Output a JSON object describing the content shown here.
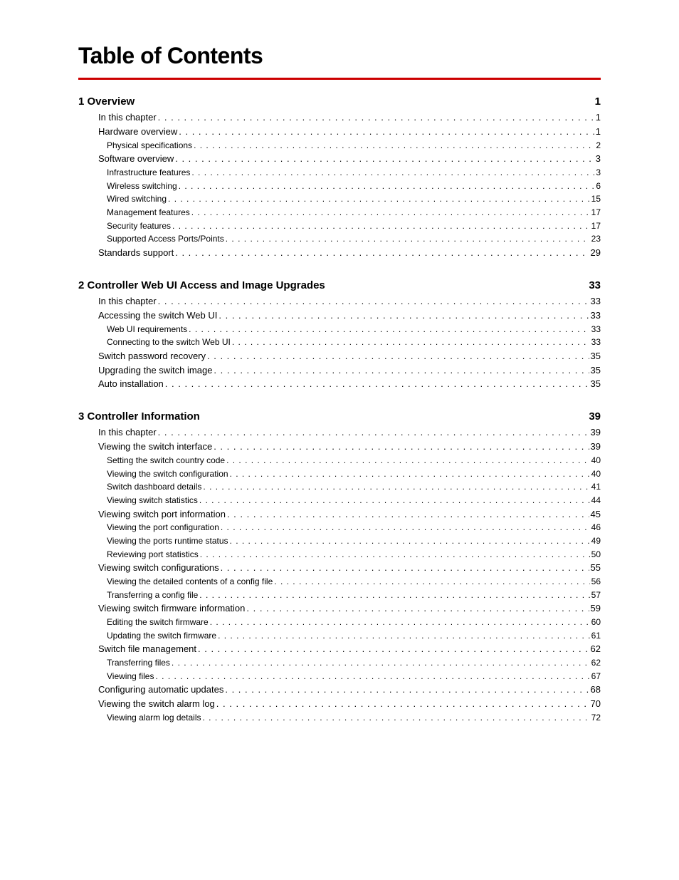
{
  "title": "Table of Contents",
  "colors": {
    "rule": "#cc0000",
    "text": "#000000",
    "background": "#ffffff"
  },
  "typography": {
    "title_fontsize": 32,
    "chapter_fontsize": 15,
    "level1_fontsize": 13,
    "level2_fontsize": 12,
    "font_family": "Arial"
  },
  "chapters": [
    {
      "id": "ch1",
      "number": "1",
      "title": "Overview",
      "page": "1",
      "entries": [
        {
          "level": 1,
          "label": "In this chapter",
          "page": "1"
        },
        {
          "level": 1,
          "label": "Hardware overview",
          "page": "1"
        },
        {
          "level": 2,
          "label": "Physical specifications",
          "page": "2"
        },
        {
          "level": 1,
          "label": "Software overview",
          "page": "3"
        },
        {
          "level": 2,
          "label": "Infrastructure features",
          "page": "3"
        },
        {
          "level": 2,
          "label": "Wireless switching",
          "page": "6"
        },
        {
          "level": 2,
          "label": "Wired switching",
          "page": "15"
        },
        {
          "level": 2,
          "label": "Management features",
          "page": "17"
        },
        {
          "level": 2,
          "label": "Security features",
          "page": "17"
        },
        {
          "level": 2,
          "label": "Supported Access Ports/Points",
          "page": "23"
        },
        {
          "level": 1,
          "label": "Standards support",
          "page": "29"
        }
      ]
    },
    {
      "id": "ch2",
      "number": "2",
      "title": "Controller Web UI Access and Image Upgrades",
      "page": "33",
      "entries": [
        {
          "level": 1,
          "label": "In this chapter",
          "page": "33"
        },
        {
          "level": 1,
          "label": "Accessing the switch Web UI",
          "page": "33"
        },
        {
          "level": 2,
          "label": "Web UI requirements",
          "page": "33"
        },
        {
          "level": 2,
          "label": "Connecting to the switch Web UI",
          "page": "33"
        },
        {
          "level": 1,
          "label": "Switch password recovery",
          "page": "35"
        },
        {
          "level": 1,
          "label": "Upgrading the switch image",
          "page": "35"
        },
        {
          "level": 1,
          "label": "Auto installation",
          "page": "35"
        }
      ]
    },
    {
      "id": "ch3",
      "number": "3",
      "title": "Controller Information",
      "page": "39",
      "entries": [
        {
          "level": 1,
          "label": "In this chapter",
          "page": "39"
        },
        {
          "level": 1,
          "label": "Viewing the switch interface",
          "page": "39"
        },
        {
          "level": 2,
          "label": "Setting the switch country code",
          "page": "40"
        },
        {
          "level": 2,
          "label": "Viewing the switch configuration",
          "page": "40"
        },
        {
          "level": 2,
          "label": "Switch dashboard details",
          "page": "41"
        },
        {
          "level": 2,
          "label": "Viewing switch statistics",
          "page": "44"
        },
        {
          "level": 1,
          "label": "Viewing switch port information",
          "page": "45"
        },
        {
          "level": 2,
          "label": "Viewing the port configuration",
          "page": "46"
        },
        {
          "level": 2,
          "label": "Viewing the ports runtime status",
          "page": "49"
        },
        {
          "level": 2,
          "label": "Reviewing port statistics",
          "page": "50"
        },
        {
          "level": 1,
          "label": "Viewing switch configurations",
          "page": "55"
        },
        {
          "level": 2,
          "label": "Viewing the detailed contents of a config file",
          "page": "56"
        },
        {
          "level": 2,
          "label": "Transferring a config file",
          "page": "57"
        },
        {
          "level": 1,
          "label": "Viewing switch firmware information",
          "page": "59"
        },
        {
          "level": 2,
          "label": "Editing the switch firmware",
          "page": "60"
        },
        {
          "level": 2,
          "label": "Updating the switch firmware",
          "page": "61"
        },
        {
          "level": 1,
          "label": "Switch file management",
          "page": "62"
        },
        {
          "level": 2,
          "label": "Transferring files",
          "page": "62"
        },
        {
          "level": 2,
          "label": "Viewing files",
          "page": "67"
        },
        {
          "level": 1,
          "label": "Configuring automatic updates",
          "page": "68"
        },
        {
          "level": 1,
          "label": "Viewing the switch alarm log",
          "page": "70"
        },
        {
          "level": 2,
          "label": "Viewing alarm log details",
          "page": "72"
        }
      ]
    }
  ]
}
